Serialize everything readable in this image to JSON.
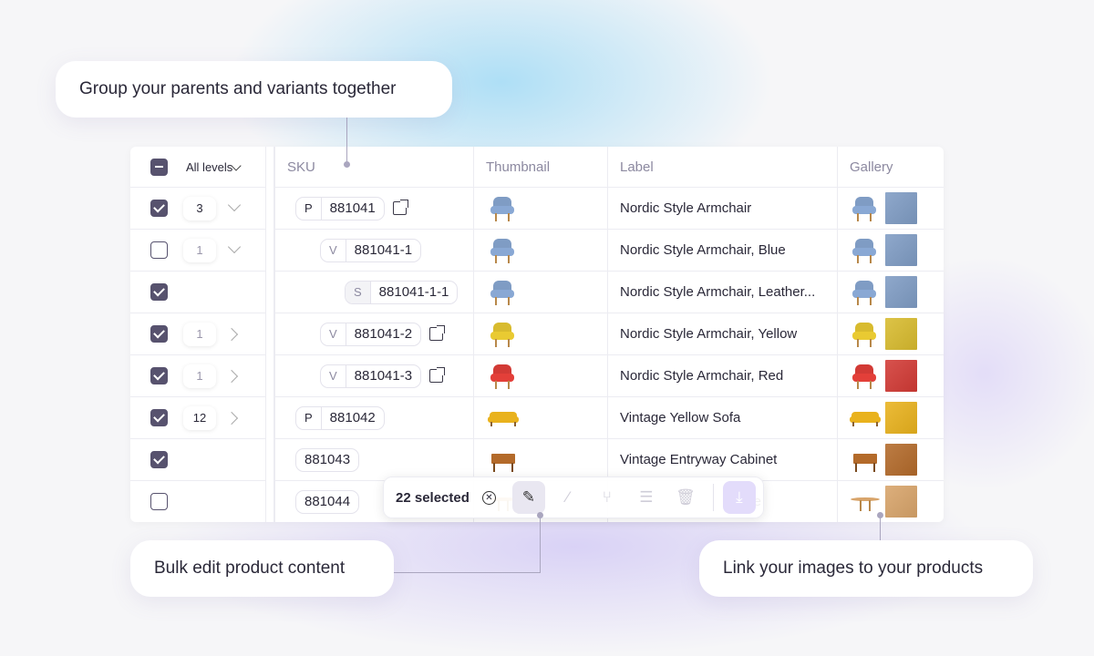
{
  "callouts": {
    "group": "Group your parents and variants together",
    "bulk": "Bulk edit product content",
    "link": "Link your images to your products"
  },
  "header": {
    "level_filter": "All levels",
    "columns": [
      "SKU",
      "Thumbnail",
      "Label",
      "Gallery"
    ]
  },
  "rows": [
    {
      "checked": true,
      "count": "3",
      "count_dim": false,
      "chevron": "down",
      "type": "P",
      "sku": "881041",
      "indent": 0,
      "external": true,
      "label": "Nordic Style Armchair",
      "item": "chair",
      "color": "#7f9cc4"
    },
    {
      "checked": false,
      "count": "1",
      "count_dim": true,
      "chevron": "down",
      "type": "V",
      "sku": "881041-1",
      "indent": 1,
      "external": false,
      "label": "Nordic Style Armchair, Blue",
      "item": "chair",
      "color": "#7f9cc4"
    },
    {
      "checked": true,
      "count": null,
      "chevron": null,
      "type": "S",
      "sku": "881041-1-1",
      "indent": 2,
      "external": false,
      "label": "Nordic Style Armchair, Leather...",
      "item": "chair",
      "color": "#7f9cc4"
    },
    {
      "checked": true,
      "count": "1",
      "count_dim": true,
      "chevron": "right",
      "type": "V",
      "sku": "881041-2",
      "indent": 1,
      "external": true,
      "label": "Nordic Style Armchair, Yellow",
      "item": "chair",
      "color": "#d8bb2e"
    },
    {
      "checked": true,
      "count": "1",
      "count_dim": true,
      "chevron": "right",
      "type": "V",
      "sku": "881041-3",
      "indent": 1,
      "external": true,
      "label": "Nordic Style Armchair, Red",
      "item": "chair",
      "color": "#d23a35"
    },
    {
      "checked": true,
      "count": "12",
      "count_dim": false,
      "chevron": "right",
      "type": "P",
      "sku": "881042",
      "indent": 0,
      "external": false,
      "label": "Vintage Yellow Sofa",
      "item": "sofa",
      "color": "#e9b21d"
    },
    {
      "checked": true,
      "count": null,
      "chevron": null,
      "type": null,
      "sku": "881043",
      "indent": 0,
      "external": false,
      "label": "Vintage Entryway Cabinet",
      "item": "cabinet",
      "color": "#b36a2a"
    },
    {
      "checked": false,
      "count": null,
      "chevron": null,
      "type": null,
      "sku": "881044",
      "indent": 0,
      "external": false,
      "label": "ble",
      "item": "table",
      "color": "#d8a46a"
    }
  ],
  "toolbar": {
    "selected": "22 selected",
    "icons": [
      "clear-selection-icon",
      "pencil-icon",
      "magic-wand-icon",
      "hierarchy-icon",
      "list-icon",
      "trash-icon",
      "download-icon"
    ]
  }
}
